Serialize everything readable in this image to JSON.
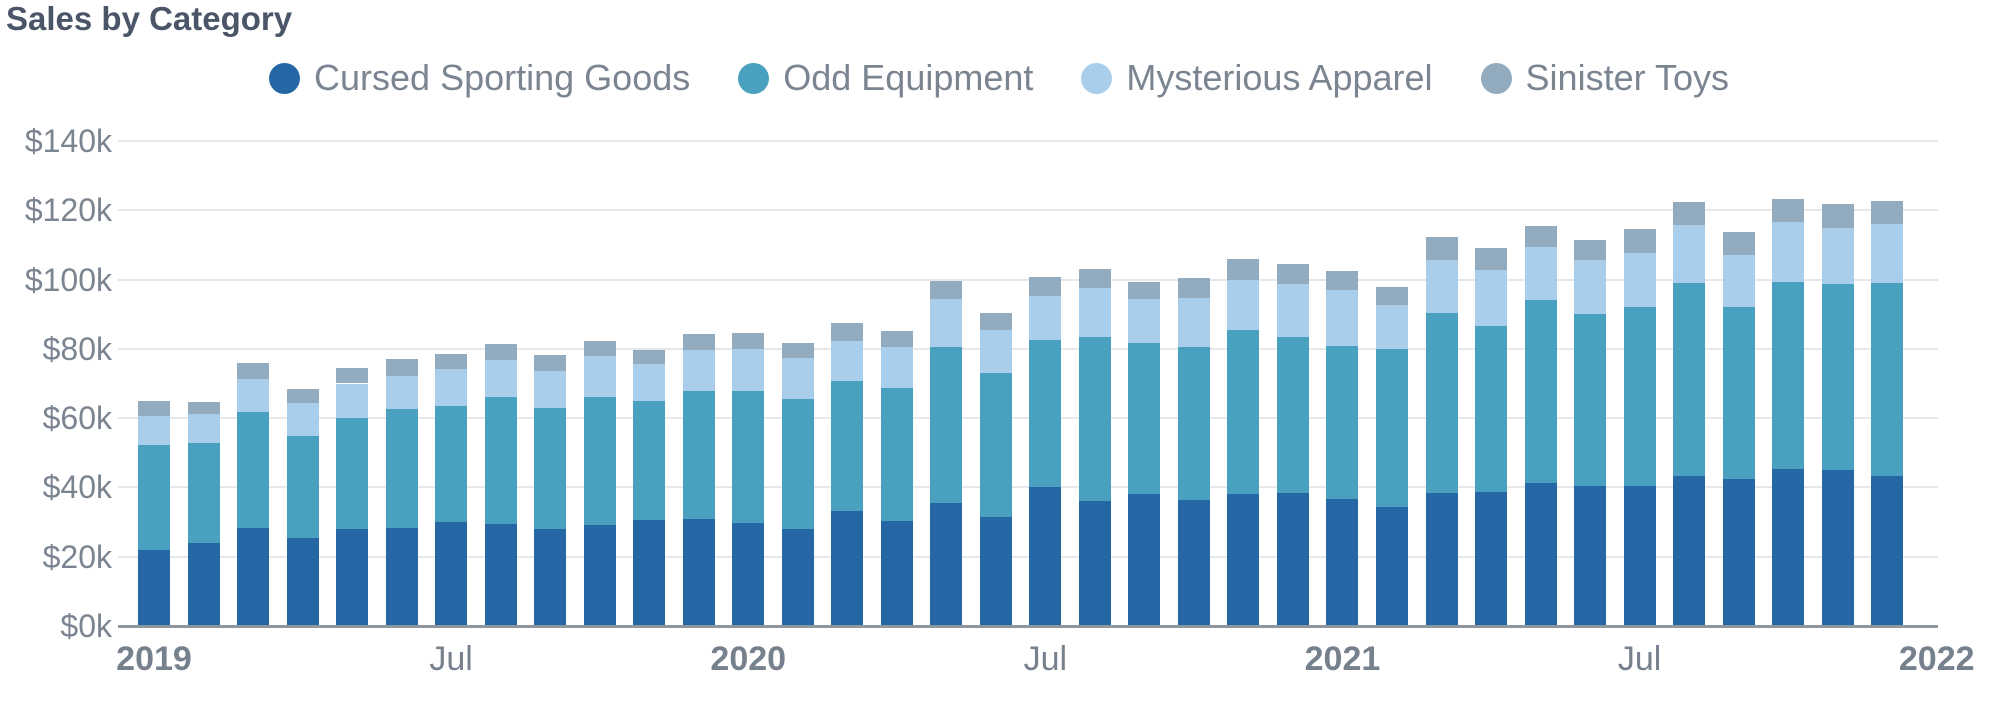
{
  "page": {
    "title": "Sales by Category"
  },
  "legend": {
    "items": [
      {
        "label": "Cursed Sporting Goods",
        "color": "#2467a4"
      },
      {
        "label": "Odd Equipment",
        "color": "#4aa1bf"
      },
      {
        "label": "Mysterious Apparel",
        "color": "#a9ceec"
      },
      {
        "label": "Sinister Toys",
        "color": "#92abbe"
      }
    ]
  },
  "chart_data": {
    "type": "bar",
    "stacked": true,
    "title": "Sales by Category",
    "xlabel": "",
    "ylabel": "",
    "value_unit": "thousand dollars",
    "ylim": [
      0,
      140
    ],
    "grid": true,
    "legend_position": "top-center",
    "categories": [
      "Jan 2019",
      "Feb 2019",
      "Mar 2019",
      "Apr 2019",
      "May 2019",
      "Jun 2019",
      "Jul 2019",
      "Aug 2019",
      "Sep 2019",
      "Oct 2019",
      "Nov 2019",
      "Dec 2019",
      "Jan 2020",
      "Feb 2020",
      "Mar 2020",
      "Apr 2020",
      "May 2020",
      "Jun 2020",
      "Jul 2020",
      "Aug 2020",
      "Sep 2020",
      "Oct 2020",
      "Nov 2020",
      "Dec 2020",
      "Jan 2021",
      "Feb 2021",
      "Mar 2021",
      "Apr 2021",
      "May 2021",
      "Jun 2021",
      "Jul 2021",
      "Aug 2021",
      "Sep 2021",
      "Oct 2021",
      "Nov 2021",
      "Dec 2021"
    ],
    "series": [
      {
        "name": "Cursed Sporting Goods",
        "color": "#2467a4",
        "values": [
          21.9,
          24,
          28.4,
          25.3,
          28.1,
          28.4,
          30.1,
          29.3,
          27.9,
          29.2,
          30.6,
          30.8,
          29.6,
          28,
          33.2,
          30.4,
          35.4,
          31.4,
          40.2,
          36.2,
          38.1,
          36.4,
          38.1,
          38.3,
          36.6,
          34.4,
          38.5,
          38.8,
          41.2,
          40.4,
          40.4,
          43.4,
          42.3,
          45.2,
          45,
          43.4
        ]
      },
      {
        "name": "Odd Equipment",
        "color": "#4aa1bf",
        "values": [
          30.3,
          28.7,
          33.5,
          29.5,
          32,
          34.1,
          33.4,
          36.7,
          34.9,
          37,
          34.4,
          37,
          38.3,
          37.5,
          37.5,
          38.4,
          45,
          41.7,
          42.3,
          47.3,
          43.7,
          44,
          47.3,
          45.2,
          44.3,
          45.7,
          51.9,
          47.8,
          52.9,
          49.8,
          51.6,
          55.7,
          49.9,
          54,
          53.6,
          55.7
        ]
      },
      {
        "name": "Mysterious Apparel",
        "color": "#a9ceec",
        "values": [
          8.4,
          8.5,
          9.4,
          9.5,
          9.9,
          9.8,
          10.6,
          10.8,
          10.9,
          11.8,
          10.6,
          12,
          12,
          11.9,
          11.6,
          11.8,
          13.9,
          12.3,
          12.7,
          14,
          12.5,
          14.4,
          14.6,
          15.1,
          16.1,
          12.5,
          15.2,
          16.3,
          15.4,
          15.4,
          15.6,
          16.6,
          14.8,
          17.4,
          16.2,
          16.8
        ]
      },
      {
        "name": "Sinister Toys",
        "color": "#92abbe",
        "values": [
          4.4,
          3.5,
          4.5,
          4.1,
          4.4,
          4.7,
          4.3,
          4.5,
          4.5,
          4.3,
          4.2,
          4.4,
          4.6,
          4.4,
          5.2,
          4.5,
          5.4,
          5,
          5.4,
          5.5,
          5.1,
          5.7,
          5.9,
          5.9,
          5.6,
          5.3,
          6.8,
          6.1,
          6,
          5.8,
          7,
          6.8,
          6.6,
          6.6,
          7,
          6.8
        ]
      }
    ],
    "y_tick_labels": [
      "$0k",
      "$20k",
      "$40k",
      "$60k",
      "$80k",
      "$100k",
      "$120k",
      "$140k"
    ],
    "y_tick_values": [
      0,
      20,
      40,
      60,
      80,
      100,
      120,
      140
    ],
    "x_ticks": [
      {
        "label": "2019",
        "bar_index": 0,
        "bold": true
      },
      {
        "label": "Jul",
        "bar_index": 6,
        "bold": false
      },
      {
        "label": "2020",
        "bar_index": 12,
        "bold": true
      },
      {
        "label": "Jul",
        "bar_index": 18,
        "bold": false
      },
      {
        "label": "2021",
        "bar_index": 24,
        "bold": true
      },
      {
        "label": "Jul",
        "bar_index": 30,
        "bold": false
      },
      {
        "label": "2022",
        "bar_index": 36,
        "bold": true
      }
    ]
  },
  "colors": {
    "title_text": "#4a5568",
    "axis_text": "#7b8591",
    "gridline": "#e6e7ea",
    "axis_line": "#8e979e",
    "background": "#ffffff"
  }
}
